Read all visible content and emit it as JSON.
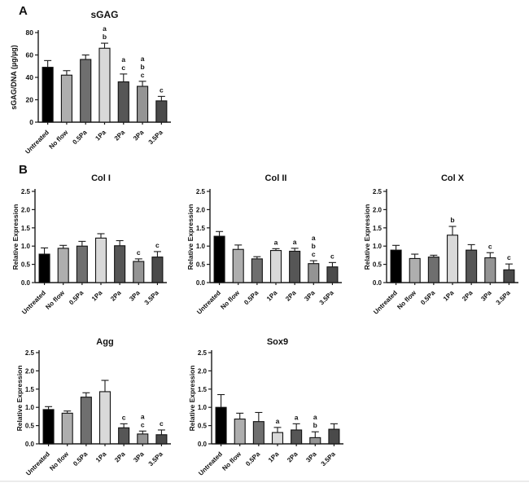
{
  "figure": {
    "panel_a_label": "A",
    "panel_b_label": "B",
    "bar_colors": [
      "#000000",
      "#aeaeae",
      "#6f6f6f",
      "#d9d9d9",
      "#565656",
      "#949494",
      "#4a4a4a"
    ],
    "annotation_color": "#404040",
    "axis_color": "#1a1a1a",
    "categories": [
      "Untreated",
      "No flow",
      "0.5Pa",
      "1Pa",
      "2Pa",
      "3Pa",
      "3.5Pa"
    ]
  },
  "chart_data": [
    {
      "id": "sgag",
      "type": "bar",
      "title": "sGAG",
      "ylabel": "sGAG/DNA (µg/µg)",
      "xlabel": "",
      "ylim": [
        0,
        80
      ],
      "yticks": [
        0,
        20,
        40,
        60,
        80
      ],
      "ytick_labels": [
        "0",
        "20",
        "40",
        "60",
        "80"
      ],
      "grid": false,
      "legend": "none",
      "categories": [
        "Untreated",
        "No flow",
        "0.5Pa",
        "1Pa",
        "2Pa",
        "3Pa",
        "3.5Pa"
      ],
      "values": [
        49,
        42,
        56,
        66,
        36,
        32,
        19
      ],
      "errors": [
        6,
        4,
        4,
        4.5,
        7,
        4.5,
        4
      ],
      "annotations": [
        [],
        [],
        [],
        [
          "a",
          "b"
        ],
        [
          "a",
          "c"
        ],
        [
          "a",
          "b",
          "c"
        ],
        [
          "c"
        ]
      ]
    },
    {
      "id": "col1",
      "type": "bar",
      "title": "Col I",
      "ylabel": "Relative Expression",
      "xlabel": "",
      "ylim": [
        0,
        2.5
      ],
      "yticks": [
        0,
        0.5,
        1.0,
        1.5,
        2.0,
        2.5
      ],
      "ytick_labels": [
        "0.0",
        "0.5",
        "1.0",
        "1.5",
        "2.0",
        "2.5"
      ],
      "grid": false,
      "legend": "none",
      "categories": [
        "Untreated",
        "No flow",
        "0.5Pa",
        "1Pa",
        "2Pa",
        "3Pa",
        "3.5Pa"
      ],
      "values": [
        0.78,
        0.94,
        1.0,
        1.22,
        1.01,
        0.58,
        0.7
      ],
      "errors": [
        0.17,
        0.08,
        0.13,
        0.12,
        0.14,
        0.07,
        0.15
      ],
      "annotations": [
        [],
        [],
        [],
        [],
        [],
        [
          "c"
        ],
        [
          "c"
        ]
      ]
    },
    {
      "id": "col2",
      "type": "bar",
      "title": "Col II",
      "ylabel": "Relative Expression",
      "xlabel": "",
      "ylim": [
        0,
        2.5
      ],
      "yticks": [
        0,
        0.5,
        1.0,
        1.5,
        2.0,
        2.5
      ],
      "ytick_labels": [
        "0.0",
        "0.5",
        "1.0",
        "1.5",
        "2.0",
        "2.5"
      ],
      "grid": false,
      "legend": "none",
      "categories": [
        "Untreated",
        "No flow",
        "0.5Pa",
        "1Pa",
        "2Pa",
        "3Pa",
        "3.5Pa"
      ],
      "values": [
        1.27,
        0.91,
        0.65,
        0.88,
        0.86,
        0.52,
        0.43
      ],
      "errors": [
        0.13,
        0.12,
        0.06,
        0.05,
        0.08,
        0.08,
        0.12
      ],
      "annotations": [
        [],
        [],
        [],
        [
          "a"
        ],
        [
          "a"
        ],
        [
          "a",
          "b",
          "c"
        ],
        [
          "c"
        ]
      ]
    },
    {
      "id": "colx",
      "type": "bar",
      "title": "Col X",
      "ylabel": "Relative Expression",
      "xlabel": "",
      "ylim": [
        0,
        2.5
      ],
      "yticks": [
        0,
        0.5,
        1.0,
        1.5,
        2.0,
        2.5
      ],
      "ytick_labels": [
        "0.0",
        "0.5",
        "1.0",
        "1.5",
        "2.0",
        "2.5"
      ],
      "grid": false,
      "legend": "none",
      "categories": [
        "Untreated",
        "No flow",
        "0.5Pa",
        "1Pa",
        "2Pa",
        "3Pa",
        "3.5Pa"
      ],
      "values": [
        0.89,
        0.66,
        0.7,
        1.3,
        0.89,
        0.68,
        0.35
      ],
      "errors": [
        0.13,
        0.12,
        0.05,
        0.24,
        0.15,
        0.14,
        0.16
      ],
      "annotations": [
        [],
        [],
        [],
        [
          "b"
        ],
        [],
        [
          "c"
        ],
        [
          "c"
        ]
      ]
    },
    {
      "id": "agg",
      "type": "bar",
      "title": "Agg",
      "ylabel": "Relative Expression",
      "xlabel": "",
      "ylim": [
        0,
        2.5
      ],
      "yticks": [
        0,
        0.5,
        1.0,
        1.5,
        2.0,
        2.5
      ],
      "ytick_labels": [
        "0.0",
        "0.5",
        "1.0",
        "1.5",
        "2.0",
        "2.5"
      ],
      "grid": false,
      "legend": "none",
      "categories": [
        "Untreated",
        "No flow",
        "0.5Pa",
        "1Pa",
        "2Pa",
        "3Pa",
        "3.5Pa"
      ],
      "values": [
        0.94,
        0.84,
        1.28,
        1.43,
        0.44,
        0.27,
        0.25
      ],
      "errors": [
        0.08,
        0.06,
        0.12,
        0.31,
        0.11,
        0.08,
        0.13
      ],
      "annotations": [
        [],
        [],
        [],
        [],
        [
          "c"
        ],
        [
          "a",
          "c"
        ],
        [
          "c"
        ]
      ]
    },
    {
      "id": "sox9",
      "type": "bar",
      "title": "Sox9",
      "ylabel": "Relative Expression",
      "xlabel": "",
      "ylim": [
        0,
        2.5
      ],
      "yticks": [
        0,
        0.5,
        1.0,
        1.5,
        2.0,
        2.5
      ],
      "ytick_labels": [
        "0.0",
        "0.5",
        "1.0",
        "1.5",
        "2.0",
        "2.5"
      ],
      "grid": false,
      "legend": "none",
      "categories": [
        "Untreated",
        "No flow",
        "0.5Pa",
        "1Pa",
        "2Pa",
        "3Pa",
        "3.5Pa"
      ],
      "values": [
        1.0,
        0.68,
        0.61,
        0.31,
        0.38,
        0.17,
        0.4
      ],
      "errors": [
        0.35,
        0.16,
        0.25,
        0.14,
        0.17,
        0.16,
        0.15
      ],
      "annotations": [
        [],
        [],
        [],
        [
          "a"
        ],
        [
          "a"
        ],
        [
          "a",
          "b"
        ],
        []
      ]
    }
  ]
}
